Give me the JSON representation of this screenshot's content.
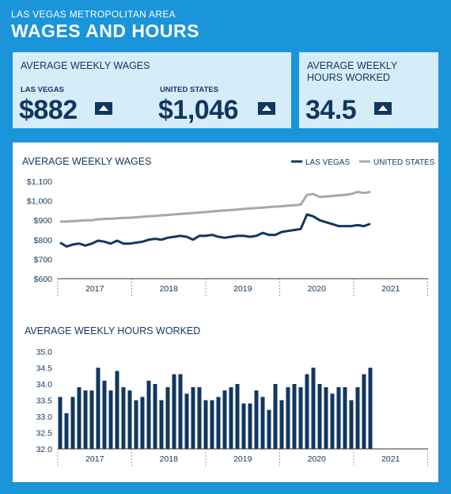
{
  "header": {
    "subtitle": "LAS VEGAS METROPOLITAN AREA",
    "title": "WAGES AND HOURS"
  },
  "wages_box": {
    "label": "AVERAGE WEEKLY WAGES",
    "lv_label": "LAS VEGAS",
    "lv_value": "$882",
    "us_label": "UNITED STATES",
    "us_value": "$1,046"
  },
  "hours_box": {
    "label_line1": "AVERAGE WEEKLY",
    "label_line2": "HOURS WORKED",
    "value": "34.5"
  },
  "colors": {
    "lv": "#10375f",
    "us": "#a6a8aa",
    "bars": "#10375f",
    "background": "#1a95d9",
    "panel": "#d6ecf8"
  },
  "icons": [
    "up-arrow-icon"
  ],
  "chart_data": [
    {
      "type": "line",
      "title": "AVERAGE WEEKLY WAGES",
      "legend_position": "top-right",
      "ylim": [
        600,
        1100
      ],
      "y_ticks": [
        "$600",
        "$700",
        "$800",
        "$900",
        "$1,000",
        "$1,100"
      ],
      "y_tick_values": [
        600,
        700,
        800,
        900,
        1000,
        1100
      ],
      "year_labels": [
        "2017",
        "2018",
        "2019",
        "2020",
        "2021"
      ],
      "series": [
        {
          "name": "LAS VEGAS",
          "values": [
            785,
            765,
            775,
            780,
            770,
            780,
            795,
            790,
            780,
            795,
            780,
            780,
            785,
            790,
            800,
            805,
            800,
            810,
            815,
            820,
            815,
            800,
            820,
            820,
            825,
            815,
            810,
            815,
            820,
            820,
            815,
            820,
            835,
            825,
            825,
            840,
            845,
            850,
            855,
            930,
            920,
            900,
            890,
            880,
            870,
            870,
            870,
            875,
            870,
            882
          ]
        },
        {
          "name": "UNITED STATES",
          "values": [
            893,
            893,
            895,
            897,
            900,
            900,
            905,
            907,
            908,
            910,
            912,
            913,
            915,
            918,
            920,
            922,
            925,
            927,
            930,
            932,
            935,
            937,
            940,
            942,
            945,
            948,
            950,
            953,
            955,
            958,
            960,
            963,
            965,
            968,
            970,
            972,
            975,
            977,
            980,
            1030,
            1035,
            1020,
            1022,
            1025,
            1028,
            1030,
            1035,
            1045,
            1040,
            1046
          ]
        }
      ]
    },
    {
      "type": "bar",
      "title": "AVERAGE WEEKLY HOURS WORKED",
      "ylim": [
        32.0,
        35.0
      ],
      "y_ticks": [
        "32.0",
        "32.5",
        "33.0",
        "33.5",
        "34.0",
        "34.5",
        "35.0"
      ],
      "y_tick_values": [
        32.0,
        32.5,
        33.0,
        33.5,
        34.0,
        34.5,
        35.0
      ],
      "year_labels": [
        "2017",
        "2018",
        "2019",
        "2020",
        "2021"
      ],
      "values": [
        33.6,
        33.1,
        33.6,
        33.9,
        33.8,
        33.8,
        34.5,
        34.1,
        33.8,
        34.4,
        33.9,
        33.8,
        33.5,
        33.6,
        34.1,
        34.0,
        33.5,
        33.9,
        34.3,
        34.3,
        33.7,
        33.9,
        33.9,
        33.5,
        33.5,
        33.6,
        33.8,
        33.9,
        34.0,
        33.4,
        33.4,
        33.8,
        33.6,
        33.2,
        34.0,
        33.5,
        33.9,
        34.0,
        33.9,
        34.3,
        34.5,
        34.0,
        33.9,
        33.7,
        33.9,
        33.9,
        33.5,
        33.9,
        34.3,
        34.5
      ]
    }
  ]
}
